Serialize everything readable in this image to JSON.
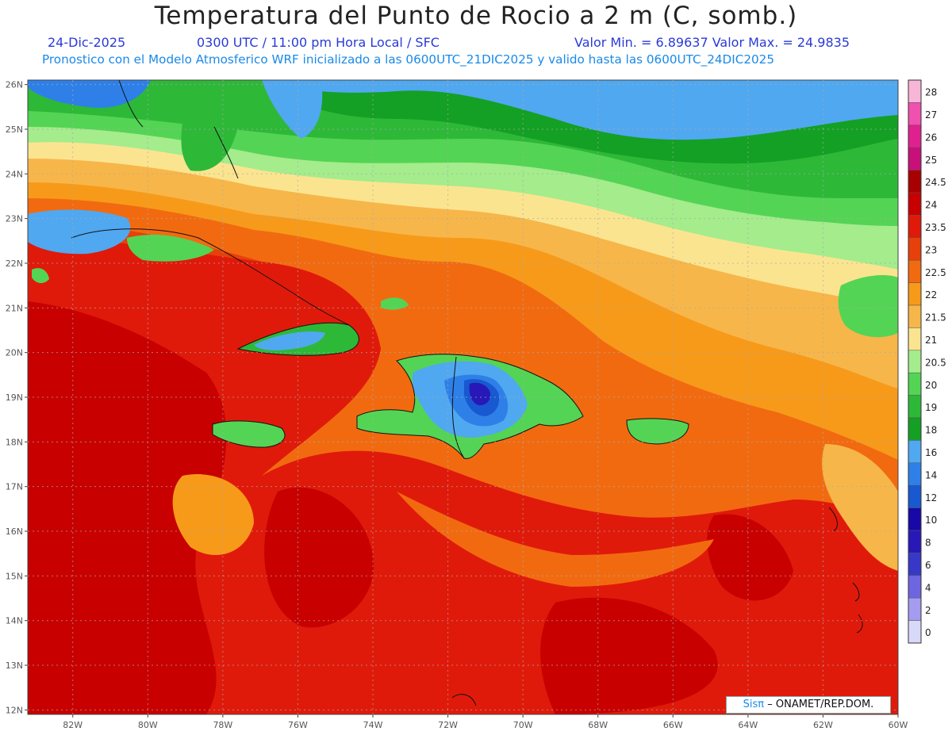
{
  "title": "Temperatura del Punto de Rocio a 2 m (C, somb.)",
  "date": "24-Dic-2025",
  "time_info": "0300 UTC / 11:00 pm Hora Local / SFC",
  "min_max": "Valor Min. = 6.89637   Valor Max. = 24.9835",
  "model_info": "Pronostico con el Modelo Atmosferico WRF inicializado a las 0600UTC_21DIC2025 y valido hasta las  0600UTC_24DIC2025",
  "credit": {
    "logo": "Sisπ",
    "org": "– ONAMET/REP.DOM."
  },
  "axes": {
    "lon_labels": [
      "82W",
      "80W",
      "78W",
      "76W",
      "74W",
      "72W",
      "70W",
      "68W",
      "66W",
      "64W",
      "62W",
      "60W"
    ],
    "lon_values": [
      -82,
      -80,
      -78,
      -76,
      -74,
      -72,
      -70,
      -68,
      -66,
      -64,
      -62,
      -60
    ],
    "lat_labels": [
      "26N",
      "25N",
      "24N",
      "23N",
      "22N",
      "21N",
      "20N",
      "19N",
      "18N",
      "17N",
      "16N",
      "15N",
      "14N",
      "13N",
      "12N"
    ],
    "lat_values": [
      26,
      25,
      24,
      23,
      22,
      21,
      20,
      19,
      18,
      17,
      16,
      15,
      14,
      13,
      12
    ],
    "lon_range": [
      -83.2,
      -60.0
    ],
    "lat_range": [
      11.9,
      26.1
    ]
  },
  "colorbar": {
    "labels": [
      "28",
      "27",
      "26",
      "25",
      "24.5",
      "24",
      "23.5",
      "23",
      "22.5",
      "22",
      "21.5",
      "21",
      "20.5",
      "20",
      "19",
      "18",
      "16",
      "14",
      "12",
      "10",
      "8",
      "6",
      "4",
      "2",
      "0"
    ],
    "colors": [
      "#f7b6d8",
      "#f050b0",
      "#e0208e",
      "#c8107a",
      "#a80000",
      "#c80000",
      "#e01a0a",
      "#e8400a",
      "#f26a10",
      "#f79a1a",
      "#f7b64a",
      "#fbe490",
      "#a4ec8c",
      "#54d454",
      "#2eb838",
      "#14a024",
      "#50a8f0",
      "#2e80e8",
      "#1858d0",
      "#1808a8",
      "#2818b8",
      "#3838c8",
      "#6e66e0",
      "#a49cf0",
      "#d8d8f8"
    ]
  }
}
